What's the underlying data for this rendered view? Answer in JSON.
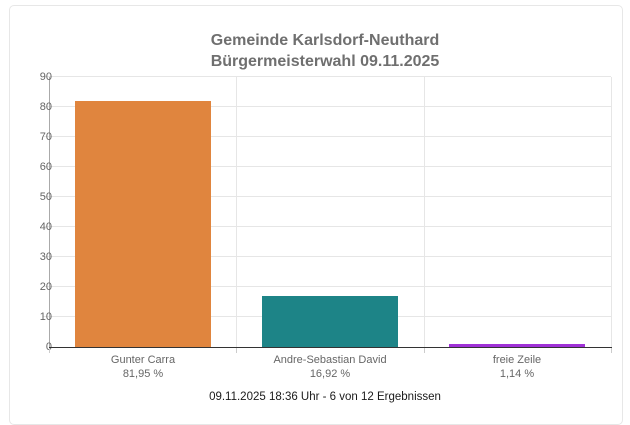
{
  "title": {
    "line1": "Gemeinde Karlsdorf-Neuthard",
    "line2": "Bürgermeisterwahl 09.11.2025"
  },
  "footer": "09.11.2025 18:36 Uhr - 6 von 12 Ergebnissen",
  "chart_data": {
    "type": "bar",
    "title": "Gemeinde Karlsdorf-Neuthard Bürgermeisterwahl 09.11.2025",
    "categories": [
      "Gunter Carra",
      "Andre-Sebastian David",
      "freie Zeile"
    ],
    "values": [
      81.95,
      16.92,
      1.14
    ],
    "value_labels": [
      "81,95 %",
      "16,92 %",
      "1,14 %"
    ],
    "bar_colors": [
      "#e0853e",
      "#1d8487",
      "#a032d7"
    ],
    "xlabel": "",
    "ylabel": "",
    "ylim": [
      0,
      90
    ],
    "yticks": [
      0,
      10,
      20,
      30,
      40,
      50,
      60,
      70,
      80,
      90
    ],
    "grid": true,
    "legend": "none"
  },
  "colors": {
    "title_text": "#6f6f6f",
    "axis_text": "#666666",
    "footer_text": "#1a1a1a",
    "gridline": "#e6e6e6",
    "x_axis_line": "#333333",
    "y_axis_line": "#aaaaaa",
    "card_border": "#e7e7e7",
    "background": "#ffffff"
  }
}
